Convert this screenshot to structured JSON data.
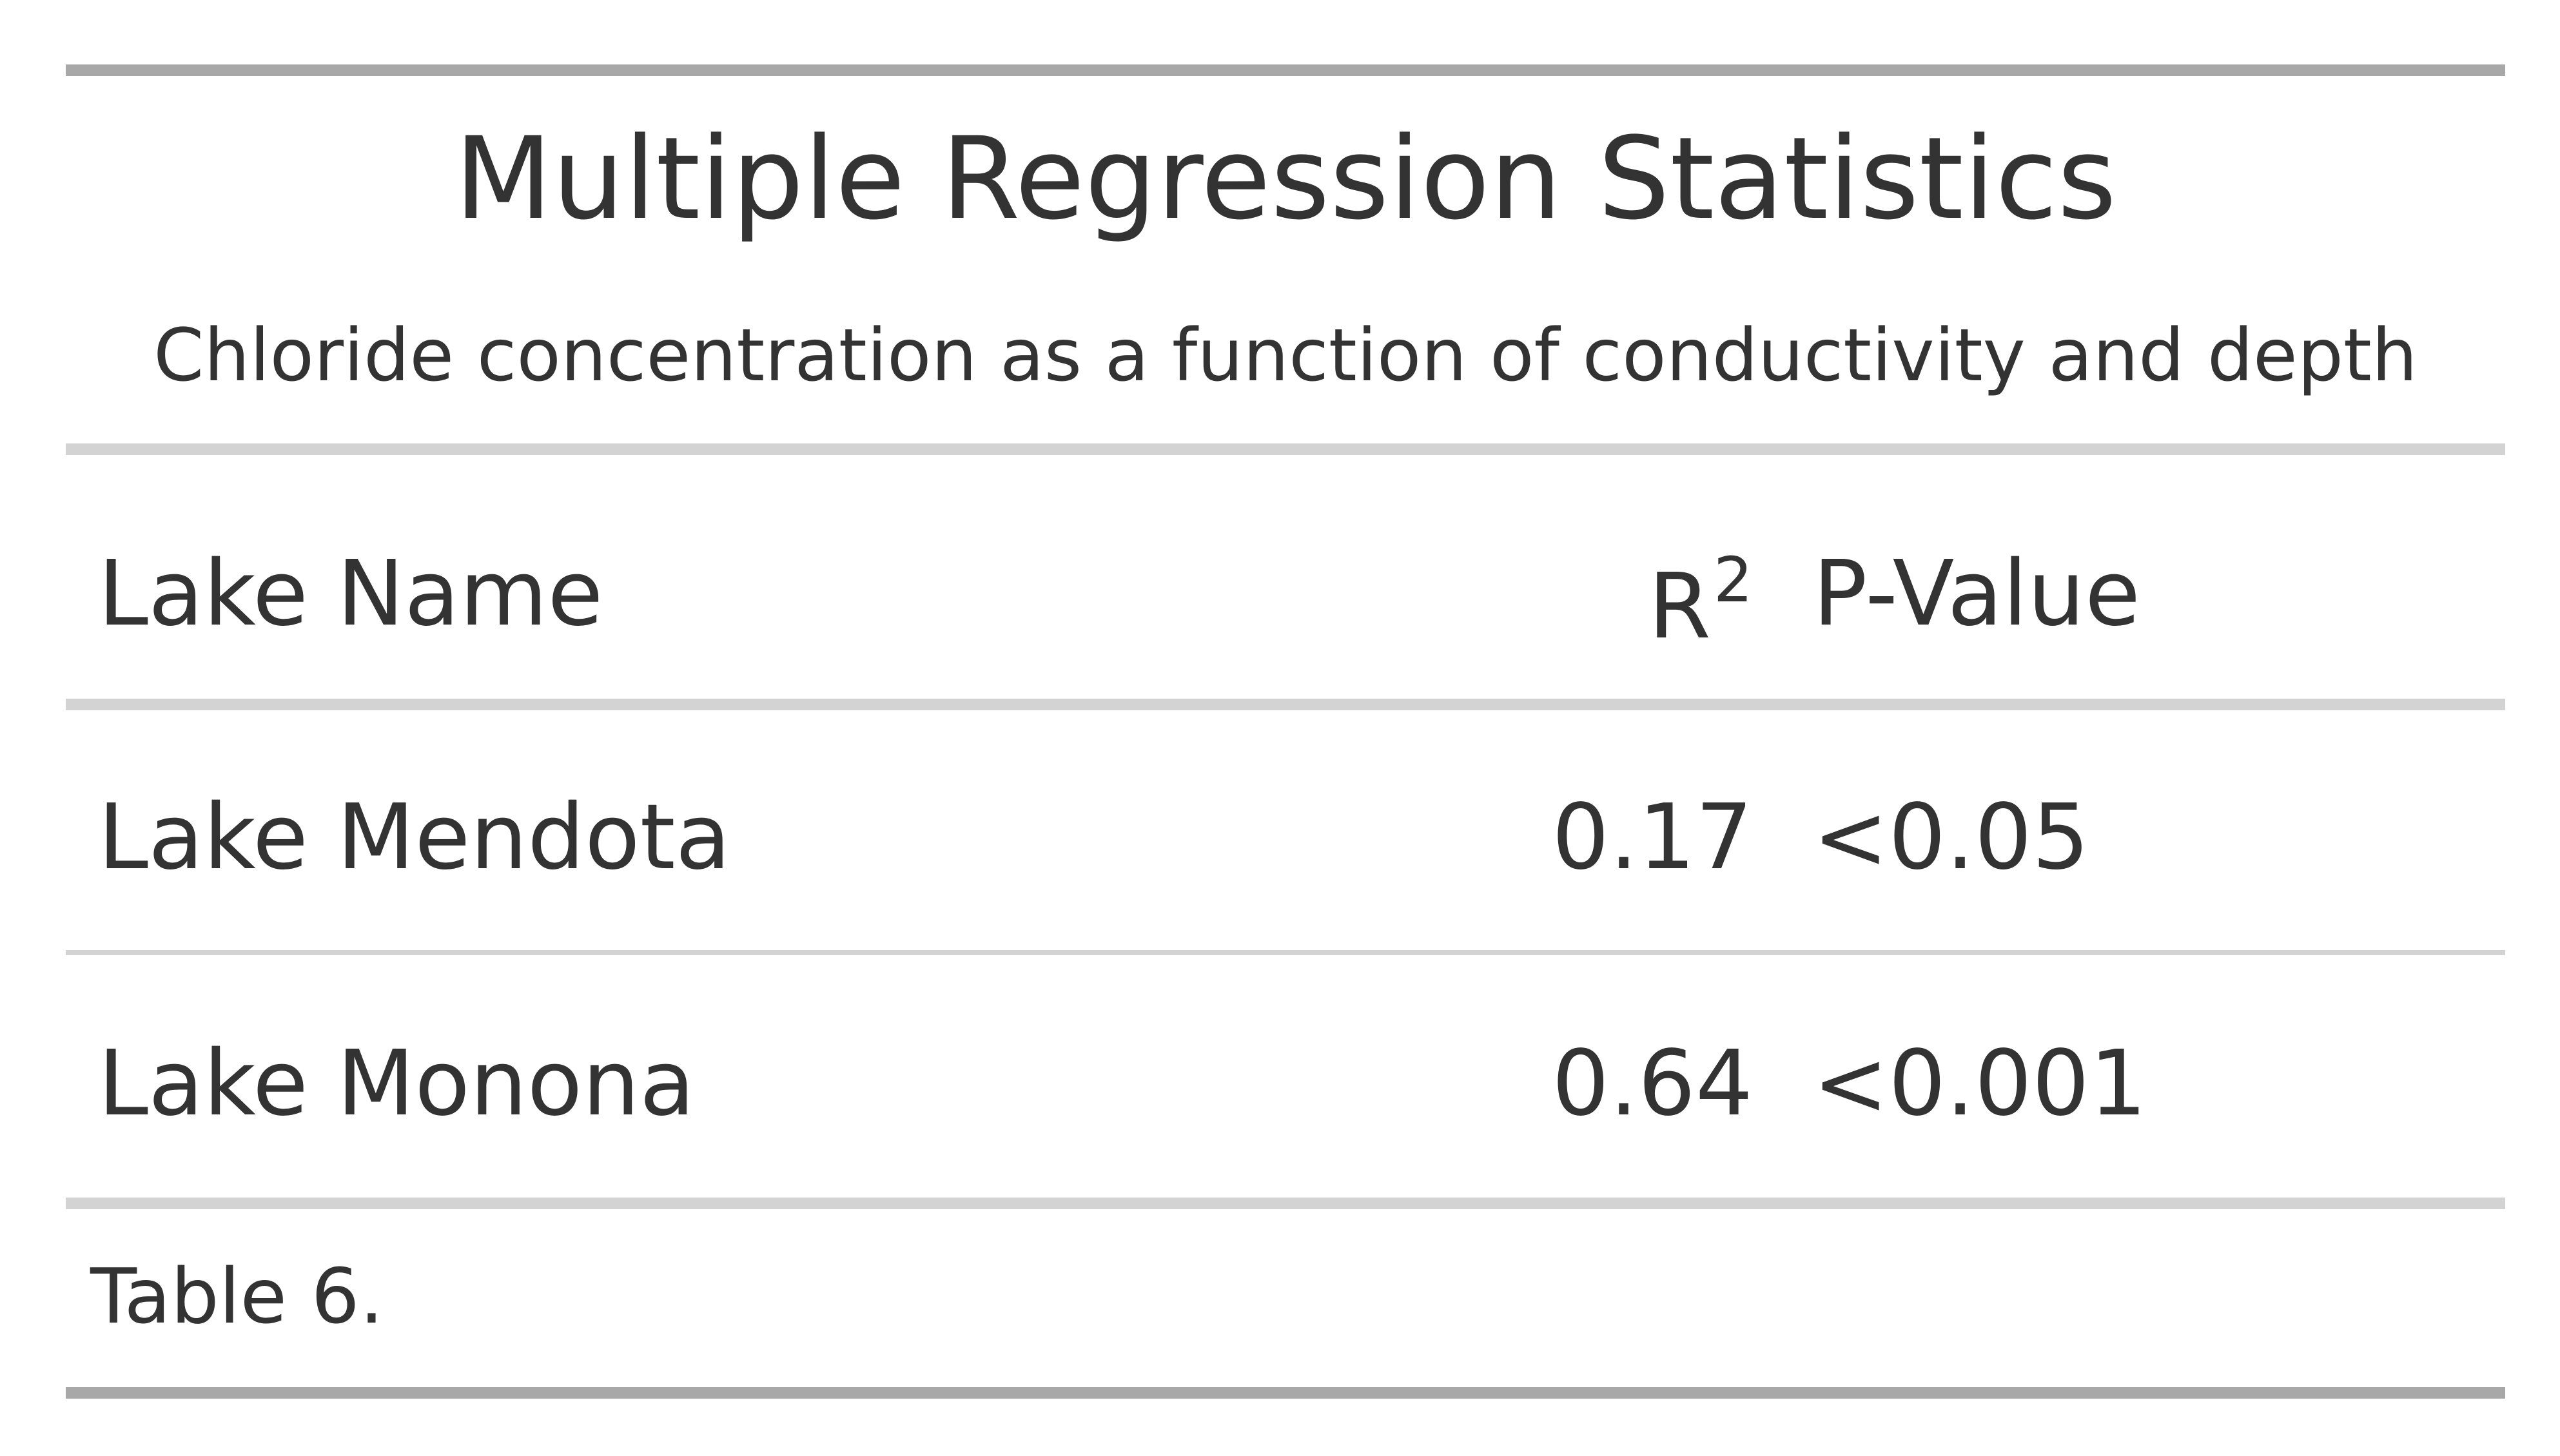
{
  "table": {
    "title": "Multiple Regression Statistics",
    "subtitle": "Chloride concentration as a function of conductivity and depth",
    "columns": {
      "name": "Lake Name",
      "r2_base": "R",
      "r2_sup": "2",
      "p": "P-Value"
    },
    "rows": [
      {
        "name": "Lake Mendota",
        "r2": "0.17",
        "p": "<0.05"
      },
      {
        "name": "Lake Monona",
        "r2": "0.64",
        "p": "<0.001"
      }
    ],
    "footnote": "Table 6.",
    "colors": {
      "text": "#333333",
      "thick_rule": "#a8a8a8",
      "light_rule": "#d3d3d3"
    }
  }
}
